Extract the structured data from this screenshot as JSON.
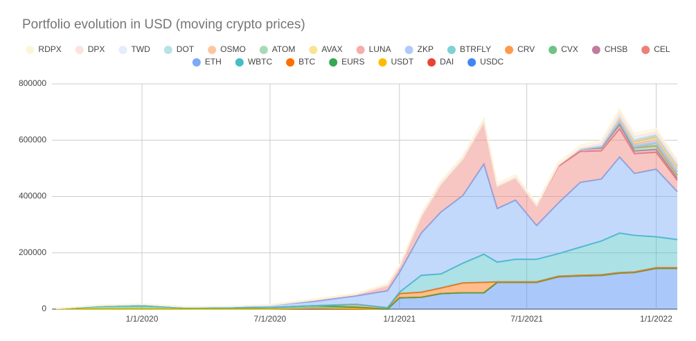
{
  "chart_data": {
    "type": "stacked_area",
    "title": "Portfolio evolution in USD (moving crypto prices)",
    "x": [
      "2019-09-01",
      "2019-11-01",
      "2020-01-01",
      "2020-03-01",
      "2020-05-01",
      "2020-07-01",
      "2020-09-01",
      "2020-11-01",
      "2020-12-15",
      "2021-01-01",
      "2021-02-01",
      "2021-03-01",
      "2021-04-01",
      "2021-05-01",
      "2021-05-20",
      "2021-06-15",
      "2021-07-15",
      "2021-08-15",
      "2021-09-15",
      "2021-10-15",
      "2021-11-10",
      "2021-12-01",
      "2022-01-01",
      "2022-01-31"
    ],
    "xlim": [
      "2019-08-26",
      "2022-01-31"
    ],
    "xticks": [
      {
        "value": "2020-01-01",
        "label": "1/1/2020"
      },
      {
        "value": "2020-07-01",
        "label": "7/1/2020"
      },
      {
        "value": "2021-01-01",
        "label": "1/1/2021"
      },
      {
        "value": "2021-07-01",
        "label": "7/1/2021"
      },
      {
        "value": "2022-01-01",
        "label": "1/1/2022"
      }
    ],
    "ylim": [
      0,
      800000
    ],
    "yticks": [
      0,
      200000,
      400000,
      600000,
      800000
    ],
    "grid": true,
    "series": [
      {
        "name": "RDPX",
        "color": "#fef4d9",
        "values": [
          1000,
          1000,
          1000,
          1000,
          1000,
          2000,
          3000,
          4000,
          5000,
          6000,
          8000,
          10000,
          10000,
          12000,
          10000,
          10000,
          8000,
          10000,
          10000,
          10000,
          12000,
          10000,
          10000,
          8000
        ]
      },
      {
        "name": "DPX",
        "color": "#fce2e0",
        "values": [
          0,
          0,
          0,
          0,
          0,
          0,
          0,
          0,
          0,
          0,
          0,
          0,
          0,
          0,
          0,
          0,
          0,
          0,
          0,
          5000,
          8000,
          8000,
          6000,
          5000
        ]
      },
      {
        "name": "TWD",
        "color": "#e3edfd",
        "values": [
          0,
          0,
          0,
          0,
          0,
          0,
          0,
          0,
          0,
          0,
          0,
          0,
          0,
          0,
          0,
          0,
          0,
          0,
          0,
          2000,
          3000,
          3000,
          3000,
          2000
        ]
      },
      {
        "name": "DOT",
        "color": "#b8e2e6",
        "values": [
          0,
          0,
          0,
          0,
          0,
          0,
          0,
          0,
          0,
          0,
          0,
          0,
          0,
          0,
          0,
          0,
          0,
          0,
          0,
          0,
          4000,
          4000,
          4000,
          3000
        ]
      },
      {
        "name": "OSMO",
        "color": "#fcc79f",
        "values": [
          0,
          0,
          0,
          0,
          0,
          0,
          0,
          0,
          0,
          0,
          0,
          0,
          0,
          0,
          0,
          0,
          0,
          0,
          0,
          0,
          0,
          3000,
          5000,
          4000
        ]
      },
      {
        "name": "ATOM",
        "color": "#a8dab5",
        "values": [
          0,
          0,
          0,
          0,
          0,
          0,
          0,
          0,
          0,
          0,
          0,
          0,
          0,
          0,
          0,
          0,
          0,
          0,
          0,
          0,
          3000,
          4000,
          5000,
          4000
        ]
      },
      {
        "name": "AVAX",
        "color": "#fde293",
        "values": [
          0,
          0,
          0,
          0,
          0,
          0,
          0,
          0,
          0,
          0,
          0,
          0,
          0,
          0,
          0,
          0,
          0,
          0,
          0,
          0,
          3000,
          4000,
          5000,
          4000
        ]
      },
      {
        "name": "LUNA",
        "color": "#f6aea9",
        "values": [
          0,
          0,
          0,
          0,
          0,
          0,
          0,
          0,
          0,
          0,
          0,
          0,
          0,
          0,
          0,
          0,
          0,
          0,
          3000,
          5000,
          6000,
          6000,
          8000,
          10000
        ]
      },
      {
        "name": "ZKP",
        "color": "#aecbfa",
        "values": [
          0,
          0,
          0,
          0,
          0,
          0,
          0,
          0,
          0,
          0,
          0,
          0,
          0,
          0,
          0,
          0,
          0,
          0,
          0,
          0,
          5000,
          5000,
          5000,
          3000
        ]
      },
      {
        "name": "BTRFLY",
        "color": "#7fd1d6",
        "values": [
          0,
          0,
          0,
          0,
          0,
          0,
          0,
          0,
          0,
          0,
          0,
          0,
          0,
          0,
          0,
          0,
          0,
          0,
          0,
          0,
          0,
          2000,
          8000,
          10000
        ]
      },
      {
        "name": "CRV",
        "color": "#ff994d",
        "values": [
          0,
          0,
          0,
          0,
          0,
          0,
          0,
          0,
          0,
          0,
          0,
          0,
          0,
          0,
          0,
          0,
          0,
          0,
          0,
          2000,
          2000,
          2000,
          2000,
          2000
        ]
      },
      {
        "name": "CVX",
        "color": "#71c287",
        "values": [
          0,
          0,
          0,
          0,
          0,
          0,
          0,
          0,
          0,
          0,
          0,
          0,
          0,
          0,
          0,
          0,
          0,
          0,
          0,
          3000,
          8000,
          10000,
          12000,
          10000
        ]
      },
      {
        "name": "CHSB",
        "color": "#c27ba0",
        "values": [
          0,
          0,
          0,
          0,
          0,
          0,
          0,
          0,
          0,
          0,
          0,
          0,
          0,
          0,
          0,
          0,
          0,
          5000,
          8000,
          10000,
          15000,
          10000,
          10000,
          8000
        ]
      },
      {
        "name": "CEL",
        "color": "#ee8079",
        "values": [
          0,
          0,
          0,
          0,
          0,
          0,
          5000,
          5000,
          20000,
          20000,
          60000,
          100000,
          130000,
          150000,
          80000,
          80000,
          70000,
          130000,
          110000,
          100000,
          100000,
          70000,
          60000,
          40000
        ]
      },
      {
        "name": "ETH",
        "color": "#7baaf7",
        "values": [
          1000,
          3000,
          5000,
          3000,
          4000,
          8000,
          15000,
          30000,
          60000,
          70000,
          150000,
          220000,
          240000,
          320000,
          190000,
          210000,
          120000,
          180000,
          230000,
          220000,
          270000,
          220000,
          240000,
          170000
        ]
      },
      {
        "name": "WBTC",
        "color": "#46bdc6",
        "values": [
          0,
          0,
          0,
          0,
          0,
          0,
          0,
          0,
          0,
          5000,
          60000,
          50000,
          70000,
          100000,
          70000,
          80000,
          80000,
          80000,
          100000,
          120000,
          140000,
          130000,
          110000,
          100000
        ]
      },
      {
        "name": "BTC",
        "color": "#ff6d01",
        "values": [
          0,
          0,
          0,
          0,
          0,
          0,
          0,
          10000,
          5000,
          15000,
          18000,
          20000,
          35000,
          37000,
          2000,
          2000,
          2000,
          2000,
          2000,
          2000,
          2000,
          2000,
          2000,
          2000
        ]
      },
      {
        "name": "EURS",
        "color": "#34a853",
        "values": [
          1000,
          10000,
          12000,
          5000,
          5000,
          6000,
          8000,
          5000,
          0,
          0,
          0,
          0,
          0,
          0,
          0,
          0,
          0,
          0,
          0,
          0,
          0,
          0,
          0,
          0
        ]
      },
      {
        "name": "USDT",
        "color": "#fbbc04",
        "values": [
          0,
          0,
          0,
          0,
          0,
          0,
          2000,
          2000,
          0,
          0,
          0,
          0,
          0,
          0,
          0,
          0,
          0,
          0,
          0,
          0,
          0,
          0,
          0,
          0
        ]
      },
      {
        "name": "DAI",
        "color": "#ea4335",
        "values": [
          0,
          0,
          0,
          0,
          0,
          0,
          2000,
          0,
          0,
          0,
          0,
          0,
          0,
          0,
          0,
          0,
          0,
          0,
          0,
          0,
          0,
          0,
          0,
          0
        ]
      },
      {
        "name": "USDC",
        "color": "#4285f4",
        "values": [
          0,
          0,
          0,
          0,
          0,
          0,
          0,
          0,
          0,
          40000,
          42000,
          55000,
          58000,
          58000,
          95000,
          95000,
          95000,
          115000,
          118000,
          120000,
          128000,
          130000,
          145000,
          145000
        ]
      }
    ]
  }
}
